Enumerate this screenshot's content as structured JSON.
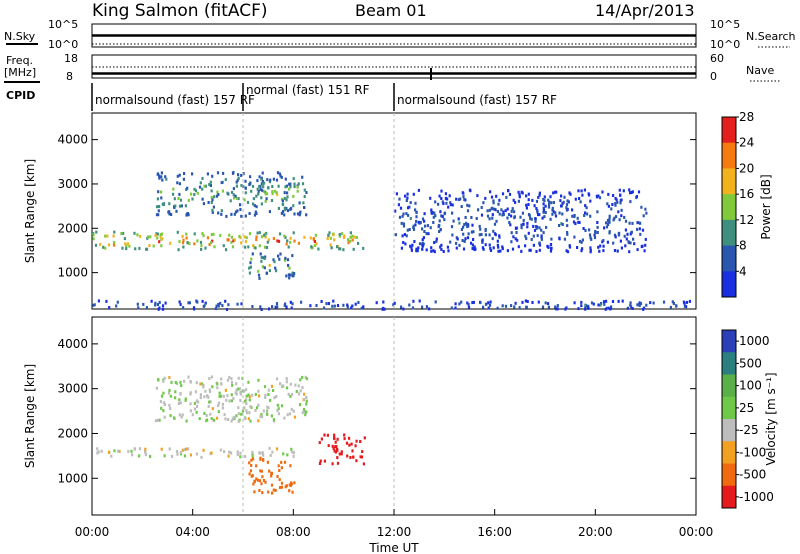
{
  "header": {
    "station": "King Salmon (fitACF)",
    "beam": "Beam 01",
    "date": "14/Apr/2013"
  },
  "noise_panel": {
    "left_label": "N.Sky",
    "left_ticks": [
      "10^5",
      "10^0"
    ],
    "right_label": "N.Search",
    "right_ticks": [
      "10^5",
      "10^0"
    ]
  },
  "freq_panel": {
    "left_label_line1": "Freq.",
    "left_label_line2": "[MHz]",
    "left_ticks": [
      "18",
      "8"
    ],
    "right_label": "Nave",
    "right_ticks": [
      "60",
      "0"
    ]
  },
  "cpid": {
    "label": "CPID",
    "segments": [
      {
        "name": "normalsound (fast) 157 RF",
        "start_h": 0.0,
        "end_h": 6.0
      },
      {
        "name": "normal (fast) 151 RF",
        "start_h": 6.0,
        "end_h": 12.0
      },
      {
        "name": "normalsound (fast) 157 RF",
        "start_h": 12.0,
        "end_h": 24.0
      }
    ]
  },
  "xaxis": {
    "label": "Time UT",
    "ticks": [
      "00:00",
      "04:00",
      "08:00",
      "12:00",
      "16:00",
      "20:00",
      "00:00"
    ],
    "range_h": [
      0,
      24
    ]
  },
  "chart_data": [
    {
      "type": "heatmap",
      "parameter": "power",
      "ylabel": "Slant Range [km]",
      "yticks": [
        "1000",
        "2000",
        "3000",
        "4000"
      ],
      "ylim": [
        180,
        4600
      ],
      "colorbar": {
        "title": "Power [dB]",
        "ticks": [
          "4",
          "8",
          "12",
          "16",
          "20",
          "24",
          "28"
        ],
        "colors": [
          "#1a2fe0",
          "#2a56b0",
          "#3f8f7f",
          "#7fc93a",
          "#f2b21c",
          "#f57a10",
          "#e3201e"
        ]
      },
      "features": [
        {
          "desc": "main backscatter band",
          "t_start": 0.0,
          "t_end": 10.8,
          "range_start": 1550,
          "range_end": 1950,
          "peak_db": 28
        },
        {
          "desc": "upper arcs",
          "t_start": 2.5,
          "t_end": 8.5,
          "range_start": 2300,
          "range_end": 3300,
          "peak_db": 16
        },
        {
          "desc": "descending echo",
          "t_start": 6.2,
          "t_end": 8.0,
          "range_start": 900,
          "range_end": 1500,
          "peak_db": 16
        },
        {
          "desc": "ground scatter near range gate 0",
          "t_start": 0.0,
          "t_end": 24.0,
          "range_start": 200,
          "range_end": 400,
          "peak_db": 8
        },
        {
          "desc": "late scattered echoes",
          "t_start": 12.0,
          "t_end": 22.0,
          "range_start": 1500,
          "range_end": 2900,
          "peak_db": 8
        }
      ]
    },
    {
      "type": "heatmap",
      "parameter": "velocity",
      "ylabel": "Slant Range [km]",
      "yticks": [
        "1000",
        "2000",
        "3000",
        "4000"
      ],
      "ylim": [
        180,
        4600
      ],
      "colorbar": {
        "title": "Velocity [m s⁻¹]",
        "ticks": [
          "1000",
          "500",
          "100",
          "25",
          "-25",
          "-100",
          "-500",
          "-1000"
        ],
        "colors": [
          "#2a3fb8",
          "#2c7f7f",
          "#5ab048",
          "#6ec84a",
          "#bdbdbd",
          "#f2a020",
          "#f06a10",
          "#e41a1c"
        ]
      },
      "features": [
        {
          "desc": "ground scatter band (grey)",
          "t_start": 0.0,
          "t_end": 8.5,
          "range_start": 1500,
          "range_end": 1700,
          "velocity": 0
        },
        {
          "desc": "strong negative velocity patch",
          "t_start": 9.0,
          "t_end": 10.8,
          "range_start": 1350,
          "range_end": 2000,
          "velocity": -900
        },
        {
          "desc": "orange descending echo",
          "t_start": 6.2,
          "t_end": 8.0,
          "range_start": 700,
          "range_end": 1500,
          "velocity": -300
        },
        {
          "desc": "upper grey arcs",
          "t_start": 2.5,
          "t_end": 8.5,
          "range_start": 2300,
          "range_end": 3300,
          "velocity": 10
        }
      ]
    }
  ]
}
